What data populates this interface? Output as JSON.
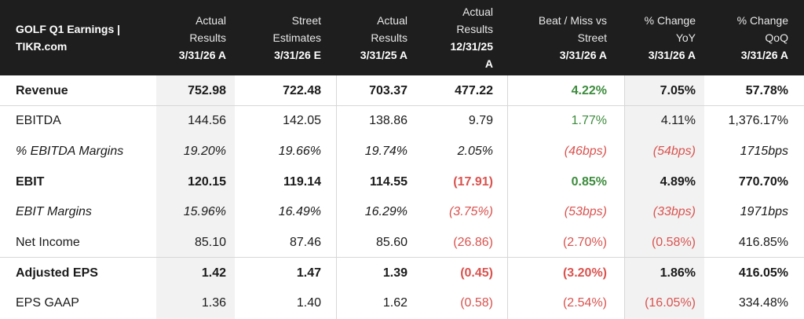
{
  "header": {
    "title_line1": "GOLF Q1 Earnings |",
    "title_line2": "TIKR.com",
    "columns": [
      {
        "lines": [
          "Actual",
          "Results"
        ],
        "sub": "3/31/26 A"
      },
      {
        "lines": [
          "Street",
          "Estimates"
        ],
        "sub": "3/31/26 E"
      },
      {
        "lines": [
          "Actual",
          "Results"
        ],
        "sub": "3/31/25 A"
      },
      {
        "lines": [
          "Actual",
          "Results",
          "12/31/25"
        ],
        "sub": "A"
      },
      {
        "lines": [
          "Beat / Miss vs",
          "Street"
        ],
        "sub": "3/31/26 A"
      },
      {
        "lines": [
          "% Change",
          "YoY"
        ],
        "sub": "3/31/26 A"
      },
      {
        "lines": [
          "% Change",
          "QoQ"
        ],
        "sub": "3/31/26 A"
      }
    ]
  },
  "rows": [
    {
      "label": "Revenue",
      "values": [
        "752.98",
        "722.48",
        "703.37",
        "477.22",
        "4.22%",
        "7.05%",
        "57.78%"
      ]
    },
    {
      "label": "EBITDA",
      "values": [
        "144.56",
        "142.05",
        "138.86",
        "9.79",
        "1.77%",
        "4.11%",
        "1,376.17%"
      ]
    },
    {
      "label": "% EBITDA Margins",
      "values": [
        "19.20%",
        "19.66%",
        "19.74%",
        "2.05%",
        "(46bps)",
        "(54bps)",
        "1715bps"
      ]
    },
    {
      "label": "EBIT",
      "values": [
        "120.15",
        "119.14",
        "114.55",
        "(17.91)",
        "0.85%",
        "4.89%",
        "770.70%"
      ]
    },
    {
      "label": "EBIT Margins",
      "values": [
        "15.96%",
        "16.49%",
        "16.29%",
        "(3.75%)",
        "(53bps)",
        "(33bps)",
        "1971bps"
      ]
    },
    {
      "label": "Net Income",
      "values": [
        "85.10",
        "87.46",
        "85.60",
        "(26.86)",
        "(2.70%)",
        "(0.58%)",
        "416.85%"
      ]
    },
    {
      "label": "Adjusted EPS",
      "values": [
        "1.42",
        "1.47",
        "1.39",
        "(0.45)",
        "(3.20%)",
        "1.86%",
        "416.05%"
      ]
    },
    {
      "label": "EPS GAAP",
      "values": [
        "1.36",
        "1.40",
        "1.62",
        "(0.58)",
        "(2.54%)",
        "(16.05%)",
        "334.48%"
      ]
    }
  ],
  "colors": {
    "header_bg": "#1e1e1e",
    "positive": "#3d8b3d",
    "negative": "#d9534f",
    "shade": "#f2f2f2"
  }
}
